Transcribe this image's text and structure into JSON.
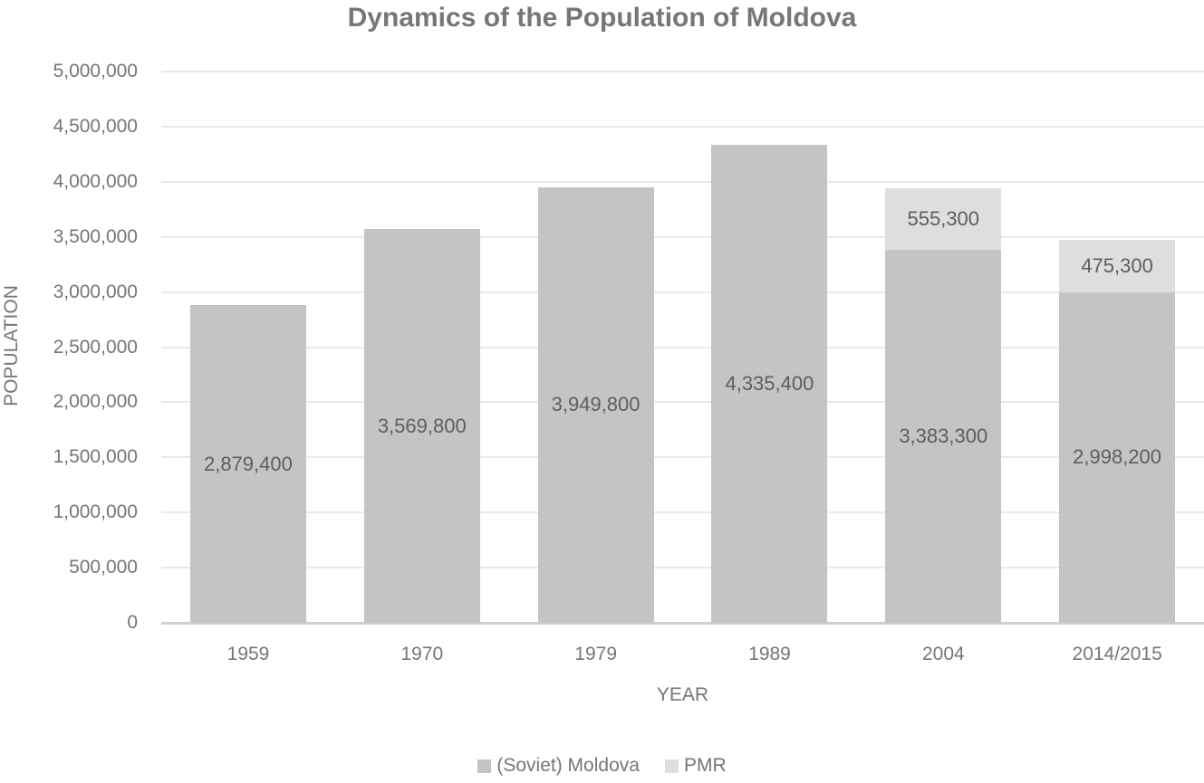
{
  "chart": {
    "title": "Dynamics of the Population of Moldova",
    "ylabel": "POPULATION",
    "xlabel": "YEAR",
    "yticks": [
      "0",
      "500,000",
      "1,000,000",
      "1,500,000",
      "2,000,000",
      "2,500,000",
      "3,000,000",
      "3,500,000",
      "4,000,000",
      "4,500,000",
      "5,000,000"
    ],
    "categories": [
      "1959",
      "1970",
      "1979",
      "1989",
      "2004",
      "2014/2015"
    ],
    "legend": [
      {
        "label": "(Soviet) Moldova",
        "color": "#c4c4c4"
      },
      {
        "label": "PMR",
        "color": "#dedede"
      }
    ],
    "bars": [
      {
        "year": "1959",
        "moldova_label": "2,879,400",
        "pmr_label": null
      },
      {
        "year": "1970",
        "moldova_label": "3,569,800",
        "pmr_label": null
      },
      {
        "year": "1979",
        "moldova_label": "3,949,800",
        "pmr_label": null
      },
      {
        "year": "1989",
        "moldova_label": "4,335,400",
        "pmr_label": null
      },
      {
        "year": "2004",
        "moldova_label": "3,383,300",
        "pmr_label": "555,300"
      },
      {
        "year": "2014/2015",
        "moldova_label": "2,998,200",
        "pmr_label": "475,300"
      }
    ]
  },
  "chart_data": {
    "type": "bar",
    "stacked": true,
    "title": "Dynamics of the Population of Moldova",
    "xlabel": "YEAR",
    "ylabel": "POPULATION",
    "categories": [
      "1959",
      "1970",
      "1979",
      "1989",
      "2004",
      "2014/2015"
    ],
    "series": [
      {
        "name": "(Soviet) Moldova",
        "color": "#c4c4c4",
        "values": [
          2879400,
          3569800,
          3949800,
          4335400,
          3383300,
          2998200
        ]
      },
      {
        "name": "PMR",
        "color": "#dedede",
        "values": [
          0,
          0,
          0,
          0,
          555300,
          475300
        ]
      }
    ],
    "ylim": [
      0,
      5000000
    ],
    "ytick_step": 500000,
    "grid": true,
    "legend_position": "bottom"
  }
}
